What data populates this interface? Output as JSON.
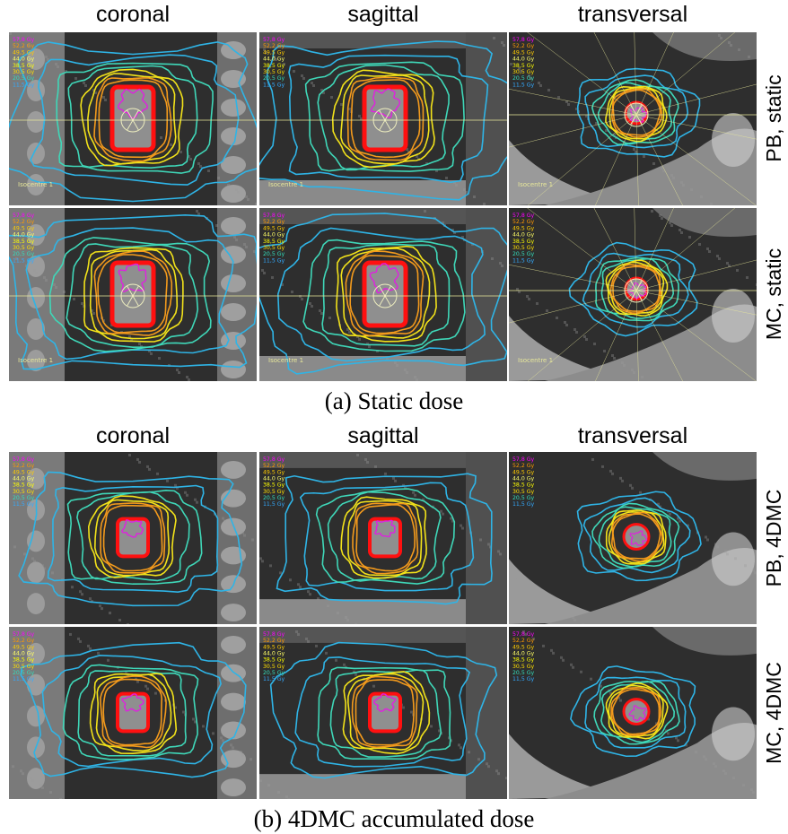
{
  "figure": {
    "column_headers": [
      "coronal",
      "sagittal",
      "transversal"
    ],
    "captions": {
      "a": "(a) Static dose",
      "b": "(b) 4DMC accumulated dose"
    },
    "row_labels": {
      "a": [
        "PB, static",
        "MC, static"
      ],
      "b": [
        "PB, 4DMC",
        "MC, 4DMC"
      ]
    },
    "legend_doses": [
      "57,8 Gy",
      "52,2 Gy",
      "49,5 Gy",
      "44,0 Gy",
      "38,5 Gy",
      "30,5 Gy",
      "20,5 Gy",
      "11,5 Gy"
    ],
    "legend_colors": [
      "#ff00ff",
      "#ff9900",
      "#ffcc00",
      "#ffff66",
      "#ffff00",
      "#ffe000",
      "#33ddbb",
      "#33aaff"
    ],
    "isocentre_label": "Isocentre 1",
    "contour_colors": {
      "outer_blue": "#2fb4e6",
      "teal": "#3fd7b8",
      "yellow": "#f2e21a",
      "orange": "#f39a1c",
      "red": "#ff1010",
      "magenta": "#e020e0"
    }
  }
}
